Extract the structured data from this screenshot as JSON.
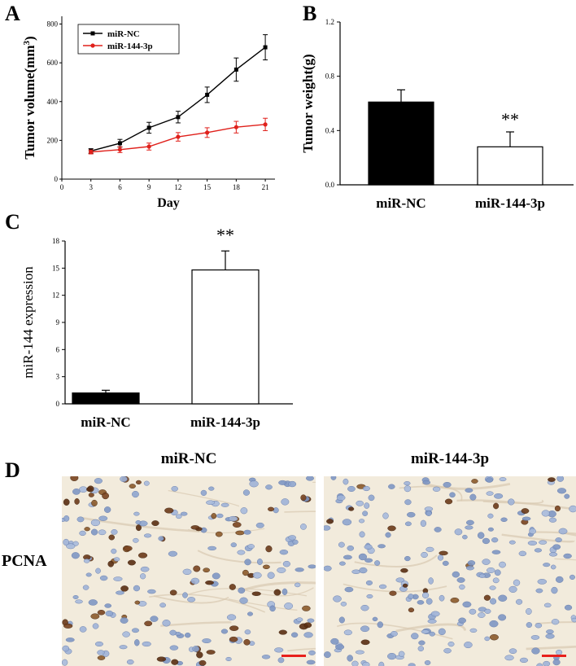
{
  "panels": {
    "a": "A",
    "b": "B",
    "c": "C",
    "d": "D"
  },
  "chart_data": [
    {
      "type": "line",
      "panel": "A",
      "xlabel": "Day",
      "ylabel": "Tumor volume(mm3)",
      "ylabel_main": "Tumor volume(mm",
      "ylabel_sup": "3",
      "ylabel_close": ")",
      "x": [
        3,
        6,
        9,
        12,
        15,
        18,
        21
      ],
      "x_ticks": [
        0,
        3,
        6,
        9,
        12,
        15,
        18,
        21
      ],
      "y_ticks": [
        0,
        200,
        400,
        600,
        800
      ],
      "xlim": [
        0,
        22
      ],
      "ylim": [
        0,
        840
      ],
      "legend_position": "top-left",
      "series": [
        {
          "name": "miR-NC",
          "color": "#000000",
          "values": [
            145,
            185,
            265,
            320,
            435,
            565,
            680
          ],
          "errors": [
            12,
            20,
            28,
            30,
            40,
            60,
            65
          ]
        },
        {
          "name": "miR-144-3p",
          "color": "#e0201b",
          "values": [
            140,
            152,
            168,
            218,
            240,
            268,
            282
          ],
          "errors": [
            10,
            15,
            18,
            22,
            25,
            30,
            32
          ]
        }
      ]
    },
    {
      "type": "bar",
      "panel": "B",
      "ylabel": "Tumor weight(g)",
      "categories": [
        "miR-NC",
        "miR-144-3p"
      ],
      "values": [
        0.61,
        0.28
      ],
      "errors": [
        0.09,
        0.11
      ],
      "fills": [
        "#000000",
        "#ffffff"
      ],
      "y_ticks": [
        "0.0",
        "0.4",
        "0.8",
        "1.2"
      ],
      "ylim": [
        0,
        1.2
      ],
      "annotation": "**"
    },
    {
      "type": "bar",
      "panel": "C",
      "ylabel": "miR-144 expression",
      "categories": [
        "miR-NC",
        "miR-144-3p"
      ],
      "values": [
        1.2,
        14.8
      ],
      "errors": [
        0.3,
        2.1
      ],
      "fills": [
        "#000000",
        "#ffffff"
      ],
      "y_ticks": [
        "0",
        "3",
        "6",
        "9",
        "12",
        "15",
        "18"
      ],
      "ylim": [
        0,
        18
      ],
      "annotation": "**"
    }
  ],
  "micrographs": {
    "row_label": "PCNA",
    "columns": [
      "miR-NC",
      "miR-144-3p"
    ],
    "scale_bar_color": "#e8201c"
  }
}
